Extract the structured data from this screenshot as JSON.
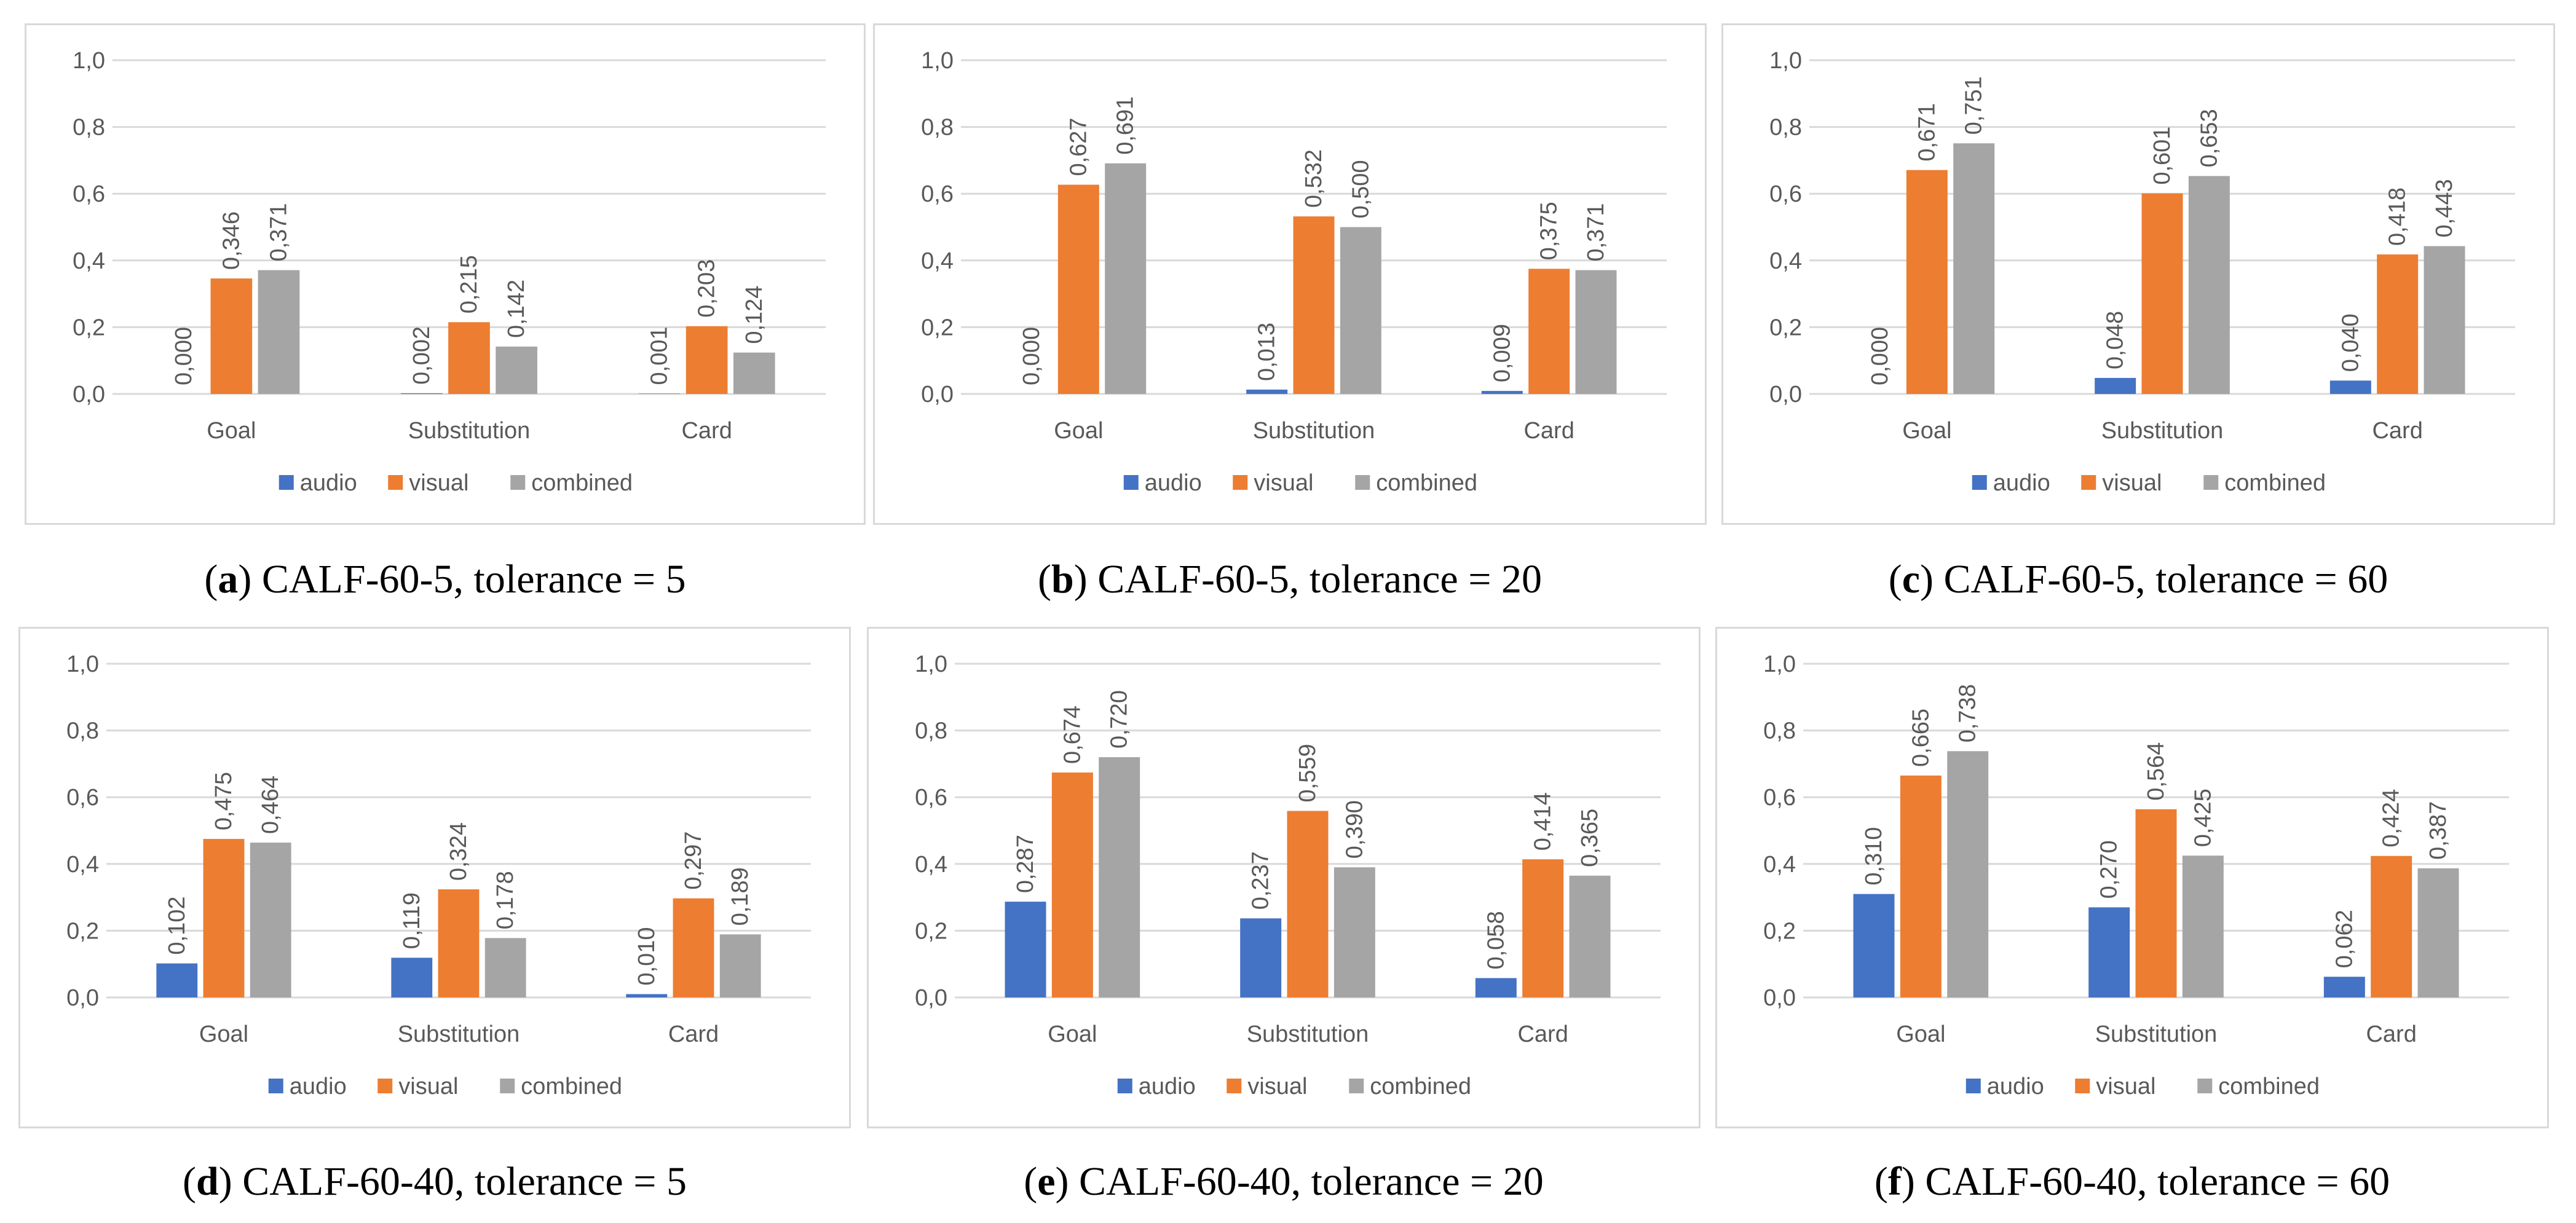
{
  "colors": {
    "audio": "#4472c4",
    "visual": "#ed7d31",
    "combined": "#a5a5a5",
    "grid": "#d9d9d9",
    "text": "#595959"
  },
  "chart_data": [
    {
      "id": "a",
      "type": "bar",
      "categories": [
        "Goal",
        "Substitution",
        "Card"
      ],
      "series": [
        {
          "name": "audio",
          "values": [
            0.0,
            0.002,
            0.001
          ],
          "labels": [
            "0,000",
            "0,002",
            "0,001"
          ]
        },
        {
          "name": "visual",
          "values": [
            0.346,
            0.215,
            0.203
          ],
          "labels": [
            "0,346",
            "0,215",
            "0,203"
          ]
        },
        {
          "name": "combined",
          "values": [
            0.371,
            0.142,
            0.124
          ],
          "labels": [
            "0,371",
            "0,142",
            "0,124"
          ]
        }
      ],
      "y_ticks": [
        "0,0",
        "0,2",
        "0,4",
        "0,6",
        "0,8",
        "1,0"
      ],
      "ylim": [
        0,
        1
      ],
      "legend": [
        "audio",
        "visual",
        "combined"
      ],
      "legend_position": "bottom",
      "caption": {
        "letter": "a",
        "text": "CALF-60-5, tolerance = 5"
      }
    },
    {
      "id": "b",
      "type": "bar",
      "categories": [
        "Goal",
        "Substitution",
        "Card"
      ],
      "series": [
        {
          "name": "audio",
          "values": [
            0.0,
            0.013,
            0.009
          ],
          "labels": [
            "0,000",
            "0,013",
            "0,009"
          ]
        },
        {
          "name": "visual",
          "values": [
            0.627,
            0.532,
            0.375
          ],
          "labels": [
            "0,627",
            "0,532",
            "0,375"
          ]
        },
        {
          "name": "combined",
          "values": [
            0.691,
            0.5,
            0.371
          ],
          "labels": [
            "0,691",
            "0,500",
            "0,371"
          ]
        }
      ],
      "y_ticks": [
        "0,0",
        "0,2",
        "0,4",
        "0,6",
        "0,8",
        "1,0"
      ],
      "ylim": [
        0,
        1
      ],
      "legend": [
        "audio",
        "visual",
        "combined"
      ],
      "legend_position": "bottom",
      "caption": {
        "letter": "b",
        "text": "CALF-60-5, tolerance = 20"
      }
    },
    {
      "id": "c",
      "type": "bar",
      "categories": [
        "Goal",
        "Substitution",
        "Card"
      ],
      "series": [
        {
          "name": "audio",
          "values": [
            0.0,
            0.048,
            0.04
          ],
          "labels": [
            "0,000",
            "0,048",
            "0,040"
          ]
        },
        {
          "name": "visual",
          "values": [
            0.671,
            0.601,
            0.418
          ],
          "labels": [
            "0,671",
            "0,601",
            "0,418"
          ]
        },
        {
          "name": "combined",
          "values": [
            0.751,
            0.653,
            0.443
          ],
          "labels": [
            "0,751",
            "0,653",
            "0,443"
          ]
        }
      ],
      "y_ticks": [
        "0,0",
        "0,2",
        "0,4",
        "0,6",
        "0,8",
        "1,0"
      ],
      "ylim": [
        0,
        1
      ],
      "legend": [
        "audio",
        "visual",
        "combined"
      ],
      "legend_position": "bottom",
      "caption": {
        "letter": "c",
        "text": "CALF-60-5, tolerance = 60"
      }
    },
    {
      "id": "d",
      "type": "bar",
      "categories": [
        "Goal",
        "Substitution",
        "Card"
      ],
      "series": [
        {
          "name": "audio",
          "values": [
            0.102,
            0.119,
            0.01
          ],
          "labels": [
            "0,102",
            "0,119",
            "0,010"
          ]
        },
        {
          "name": "visual",
          "values": [
            0.475,
            0.324,
            0.297
          ],
          "labels": [
            "0,475",
            "0,324",
            "0,297"
          ]
        },
        {
          "name": "combined",
          "values": [
            0.464,
            0.178,
            0.189
          ],
          "labels": [
            "0,464",
            "0,178",
            "0,189"
          ]
        }
      ],
      "y_ticks": [
        "0,0",
        "0,2",
        "0,4",
        "0,6",
        "0,8",
        "1,0"
      ],
      "ylim": [
        0,
        1
      ],
      "legend": [
        "audio",
        "visual",
        "combined"
      ],
      "legend_position": "bottom",
      "caption": {
        "letter": "d",
        "text": "CALF-60-40, tolerance = 5"
      }
    },
    {
      "id": "e",
      "type": "bar",
      "categories": [
        "Goal",
        "Substitution",
        "Card"
      ],
      "series": [
        {
          "name": "audio",
          "values": [
            0.287,
            0.237,
            0.058
          ],
          "labels": [
            "0,287",
            "0,237",
            "0,058"
          ]
        },
        {
          "name": "visual",
          "values": [
            0.674,
            0.559,
            0.414
          ],
          "labels": [
            "0,674",
            "0,559",
            "0,414"
          ]
        },
        {
          "name": "combined",
          "values": [
            0.72,
            0.39,
            0.365
          ],
          "labels": [
            "0,720",
            "0,390",
            "0,365"
          ]
        }
      ],
      "y_ticks": [
        "0,0",
        "0,2",
        "0,4",
        "0,6",
        "0,8",
        "1,0"
      ],
      "ylim": [
        0,
        1
      ],
      "legend": [
        "audio",
        "visual",
        "combined"
      ],
      "legend_position": "bottom",
      "caption": {
        "letter": "e",
        "text": "CALF-60-40, tolerance = 20"
      }
    },
    {
      "id": "f",
      "type": "bar",
      "categories": [
        "Goal",
        "Substitution",
        "Card"
      ],
      "series": [
        {
          "name": "audio",
          "values": [
            0.31,
            0.27,
            0.062
          ],
          "labels": [
            "0,310",
            "0,270",
            "0,062"
          ]
        },
        {
          "name": "visual",
          "values": [
            0.665,
            0.564,
            0.424
          ],
          "labels": [
            "0,665",
            "0,564",
            "0,424"
          ]
        },
        {
          "name": "combined",
          "values": [
            0.738,
            0.425,
            0.387
          ],
          "labels": [
            "0,738",
            "0,425",
            "0,387"
          ]
        }
      ],
      "y_ticks": [
        "0,0",
        "0,2",
        "0,4",
        "0,6",
        "0,8",
        "1,0"
      ],
      "ylim": [
        0,
        1
      ],
      "legend": [
        "audio",
        "visual",
        "combined"
      ],
      "legend_position": "bottom",
      "caption": {
        "letter": "f",
        "text": "CALF-60-40, tolerance = 60"
      }
    }
  ]
}
